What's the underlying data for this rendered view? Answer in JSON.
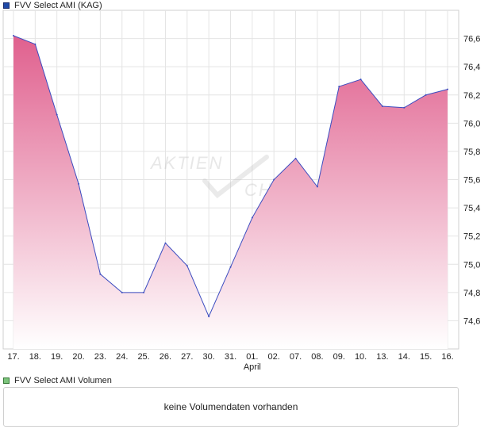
{
  "legend": {
    "price_label": "FVV Select AMI (KAG)",
    "price_color": "#1f4aa8",
    "volume_label": "FVV Select AMI Volumen",
    "volume_color": "#7cc47c"
  },
  "watermark": "AKTIEN CHECK",
  "volume_message": "keine Volumendaten vorhanden",
  "chart_data": {
    "type": "area",
    "x": [
      "17.",
      "18.",
      "19.",
      "20.",
      "23.",
      "24.",
      "25.",
      "26.",
      "27.",
      "30.",
      "31.",
      "01.",
      "02.",
      "07.",
      "08.",
      "09.",
      "10.",
      "13.",
      "14.",
      "15.",
      "16."
    ],
    "month_label": "April",
    "month_label_at": "01.",
    "series": [
      {
        "values": [
          76.62,
          76.56,
          76.06,
          75.57,
          74.93,
          74.8,
          74.8,
          75.15,
          74.99,
          74.63,
          74.98,
          75.33,
          75.6,
          75.75,
          75.55,
          76.26,
          76.31,
          76.12,
          76.11,
          76.2,
          76.24
        ]
      }
    ],
    "ylim": [
      74.4,
      76.8
    ],
    "yticks": [
      "74,6",
      "74,8",
      "75,0",
      "75,2",
      "75,4",
      "75,6",
      "75,8",
      "76,0",
      "76,2",
      "76,4",
      "76,6"
    ],
    "ytick_values": [
      74.6,
      74.8,
      75.0,
      75.2,
      75.4,
      75.6,
      75.8,
      76.0,
      76.2,
      76.4,
      76.6
    ],
    "y_axis_side": "right",
    "grid": true,
    "line_color": "#3b4cc0",
    "fill_top_color": "#e0608e",
    "fill_bottom_color": "#ffffff"
  }
}
